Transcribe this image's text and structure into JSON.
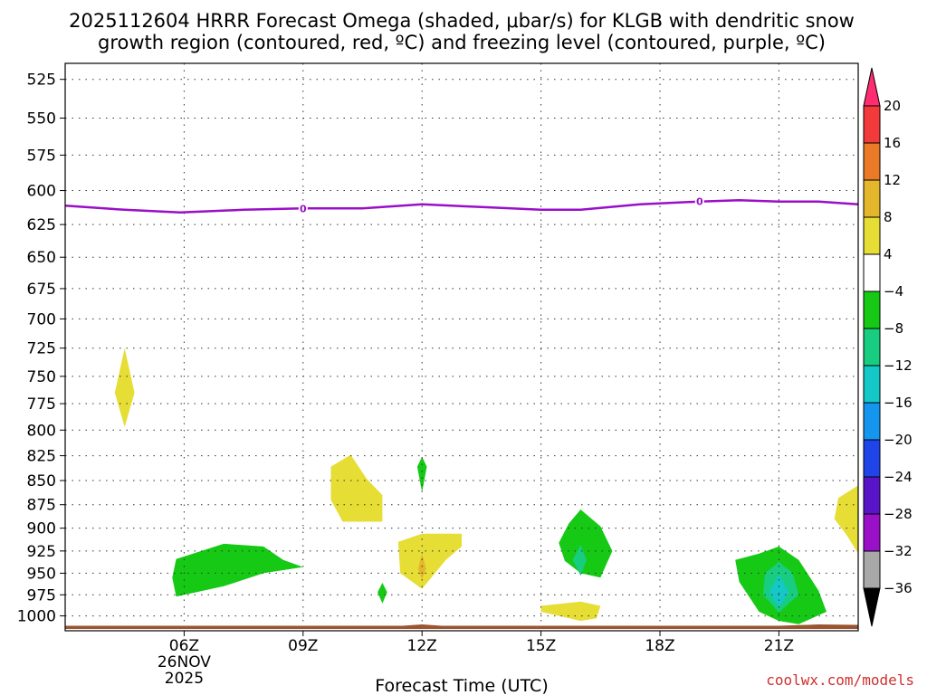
{
  "chart_data": {
    "type": "time-height filled contour",
    "title_line1": "2025112604 HRRR Forecast Omega (shaded, μbar/s) for KLGB with dendritic snow",
    "title_line2": "growth region (contoured, red, ºC) and freezing level (contoured, purple, ºC)",
    "xlabel": "Forecast Time (UTC)",
    "credit": "coolwx.com/models",
    "x_range_hours": [
      3.0,
      23.0
    ],
    "y_range_hPa": [
      515,
      1018
    ],
    "y_ticks": [
      525,
      550,
      575,
      600,
      625,
      650,
      675,
      700,
      725,
      750,
      775,
      800,
      825,
      850,
      875,
      900,
      925,
      950,
      975,
      1000
    ],
    "x_ticks": [
      {
        "hour": 6,
        "label": "06Z",
        "sub1": "26NOV",
        "sub2": "2025"
      },
      {
        "hour": 9,
        "label": "09Z"
      },
      {
        "hour": 12,
        "label": "12Z"
      },
      {
        "hour": 15,
        "label": "15Z"
      },
      {
        "hour": 18,
        "label": "18Z"
      },
      {
        "hour": 21,
        "label": "21Z"
      }
    ],
    "colorbar": {
      "labels": [
        "20",
        "16",
        "12",
        "8",
        "4",
        "−4",
        "−8",
        "−12",
        "−16",
        "−20",
        "−24",
        "−28",
        "−32",
        "−36"
      ],
      "bins": [
        {
          "color": "#ff2c72"
        },
        {
          "color": "#f23a3a"
        },
        {
          "color": "#ea7a26"
        },
        {
          "color": "#e4b62c"
        },
        {
          "color": "#e6dd35"
        },
        {
          "color": "#ffffff"
        },
        {
          "color": "#15c915"
        },
        {
          "color": "#18cc80"
        },
        {
          "color": "#14c8c8"
        },
        {
          "color": "#1496ee"
        },
        {
          "color": "#1f45e8"
        },
        {
          "color": "#5a14c8"
        },
        {
          "color": "#9a0fc8"
        },
        {
          "color": "#a8a8a8"
        },
        {
          "color": "#000000"
        }
      ]
    },
    "freezing_level": {
      "label": "0",
      "color": "#9a0fc8",
      "label_hours": [
        9.0,
        19.0
      ],
      "points": [
        [
          3.0,
          611
        ],
        [
          4.5,
          614
        ],
        [
          5.9,
          616
        ],
        [
          7.5,
          614
        ],
        [
          9.0,
          613
        ],
        [
          10.5,
          613
        ],
        [
          12.0,
          610
        ],
        [
          13.5,
          612
        ],
        [
          15.0,
          614
        ],
        [
          16.0,
          614
        ],
        [
          17.5,
          610
        ],
        [
          19.0,
          608
        ],
        [
          20.0,
          607
        ],
        [
          21.0,
          608
        ],
        [
          22.0,
          608
        ],
        [
          23.0,
          610
        ]
      ]
    },
    "terrain": {
      "color": "#9a5430",
      "top_hPa": 1012
    },
    "omega_regions": [
      {
        "value": "4 to 8",
        "color": "#e6dd35",
        "polygon": [
          [
            4.5,
            725
          ],
          [
            4.75,
            765
          ],
          [
            4.5,
            797
          ],
          [
            4.25,
            765
          ]
        ]
      },
      {
        "value": "4 to 8",
        "color": "#e6dd35",
        "polygon": [
          [
            9.7,
            836
          ],
          [
            10.2,
            824
          ],
          [
            10.6,
            848
          ],
          [
            11.0,
            865
          ],
          [
            11.0,
            893
          ],
          [
            10.0,
            893
          ],
          [
            9.7,
            870
          ]
        ]
      },
      {
        "value": "4 to 8",
        "color": "#e6dd35",
        "polygon": [
          [
            12.0,
            906
          ],
          [
            13.0,
            906
          ],
          [
            13.0,
            920
          ],
          [
            12.6,
            935
          ],
          [
            12.0,
            968
          ],
          [
            11.45,
            950
          ],
          [
            11.4,
            915
          ]
        ]
      },
      {
        "value": "4 to 8",
        "color": "#e6dd35",
        "polygon": [
          [
            15.0,
            988
          ],
          [
            16.0,
            983
          ],
          [
            16.5,
            988
          ],
          [
            16.4,
            1003
          ],
          [
            16.0,
            1006
          ],
          [
            15.0,
            995
          ]
        ]
      },
      {
        "value": "4 to 8",
        "color": "#e6dd35",
        "polygon": [
          [
            22.4,
            890
          ],
          [
            22.5,
            868
          ],
          [
            23.0,
            855
          ],
          [
            23.0,
            928
          ],
          [
            22.7,
            907
          ]
        ]
      },
      {
        "value": "8 to 12",
        "color": "#e4b62c",
        "polygon": [
          [
            12.0,
            928
          ],
          [
            12.1,
            945
          ],
          [
            12.0,
            957
          ],
          [
            11.9,
            945
          ]
        ]
      },
      {
        "value": "-4 to -8",
        "color": "#15c915",
        "polygon": [
          [
            5.8,
            934
          ],
          [
            7.0,
            917
          ],
          [
            8.0,
            920
          ],
          [
            8.5,
            935
          ],
          [
            9.0,
            943
          ],
          [
            8.0,
            950
          ],
          [
            7.0,
            965
          ],
          [
            5.8,
            977
          ],
          [
            5.7,
            955
          ]
        ]
      },
      {
        "value": "-4 to -8",
        "color": "#15c915",
        "polygon": [
          [
            12.0,
            826
          ],
          [
            12.12,
            836
          ],
          [
            12.0,
            862
          ],
          [
            11.88,
            836
          ]
        ]
      },
      {
        "value": "-4 to -8",
        "color": "#15c915",
        "polygon": [
          [
            11.0,
            961
          ],
          [
            11.12,
            972
          ],
          [
            11.0,
            985
          ],
          [
            10.88,
            972
          ]
        ]
      },
      {
        "value": "-4 to -8",
        "color": "#15c915",
        "polygon": [
          [
            16.0,
            880
          ],
          [
            16.5,
            898
          ],
          [
            16.8,
            925
          ],
          [
            16.5,
            955
          ],
          [
            16.0,
            950
          ],
          [
            15.6,
            936
          ],
          [
            15.45,
            916
          ],
          [
            15.7,
            895
          ]
        ]
      },
      {
        "value": "-4 to -8",
        "color": "#15c915",
        "polygon": [
          [
            20.5,
            928
          ],
          [
            21.0,
            920
          ],
          [
            21.5,
            935
          ],
          [
            22.0,
            970
          ],
          [
            22.2,
            995
          ],
          [
            21.5,
            1010
          ],
          [
            21.0,
            1006
          ],
          [
            20.5,
            995
          ],
          [
            20.0,
            960
          ],
          [
            19.9,
            935
          ]
        ]
      },
      {
        "value": "-8 to -12",
        "color": "#18cc80",
        "polygon": [
          [
            16.0,
            918
          ],
          [
            16.15,
            935
          ],
          [
            16.0,
            953
          ],
          [
            15.8,
            935
          ]
        ]
      },
      {
        "value": "-8 to -12",
        "color": "#18cc80",
        "polygon": [
          [
            21.0,
            937
          ],
          [
            21.35,
            950
          ],
          [
            21.5,
            975
          ],
          [
            21.0,
            996
          ],
          [
            20.6,
            975
          ],
          [
            20.65,
            950
          ]
        ]
      },
      {
        "value": "-12 to -16",
        "color": "#14c8c8",
        "polygon": [
          [
            21.0,
            952
          ],
          [
            21.25,
            972
          ],
          [
            21.0,
            990
          ],
          [
            20.75,
            972
          ]
        ]
      }
    ]
  }
}
